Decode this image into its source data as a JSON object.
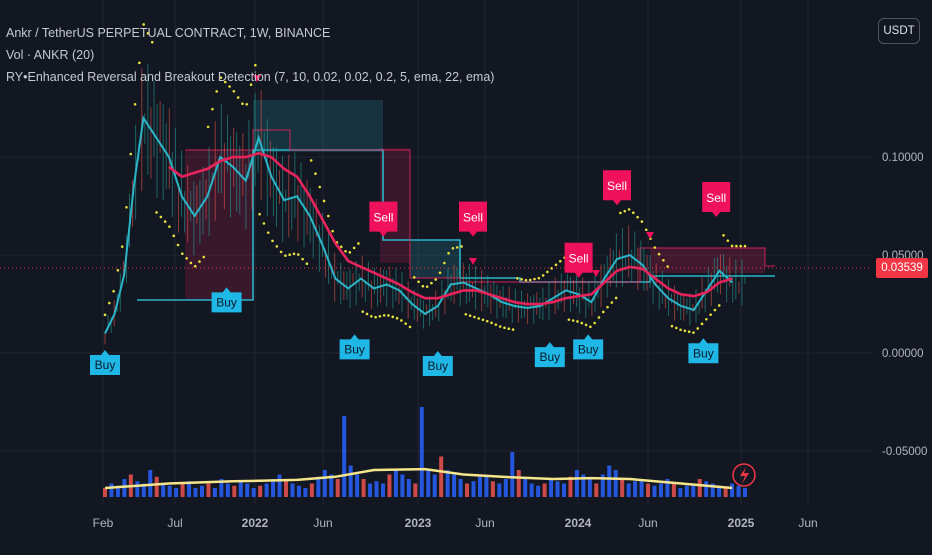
{
  "header": {
    "symbol_line": "Ankr / TetherUS PERPETUAL CONTRACT, 1W, BINANCE",
    "volume_line": "Vol · ANKR (20)",
    "indicator_line": "RY•Enhanced Reversal and Breakout Detection (7, 10, 0.02, 0.02, 0.2, 5, ema, 22, ema)"
  },
  "currency_button": "USDT",
  "last_price": "0.03539",
  "theme": {
    "background": "#131722",
    "grid": "#1f2433",
    "buy_color": "#1eb7e6",
    "sell_color": "#f0115c",
    "ema_fast_color": "#2bb5c8",
    "ema_slow_color": "#e8235c",
    "psar_color": "#e8e23a",
    "volume_ma_color": "#f5e58a",
    "volume_up_color": "#2962ff",
    "volume_down_color": "#ef5350"
  },
  "chart_data": {
    "type": "line",
    "x_ticks": [
      "Feb",
      "Jul",
      "2022",
      "Jun",
      "2023",
      "Jun",
      "2024",
      "Jun",
      "2025",
      "Jun"
    ],
    "y_ticks": [
      "0.10000",
      "0.05000",
      "0.00000",
      "-0.05000"
    ],
    "ylim": [
      -0.075,
      0.17
    ],
    "signals": [
      {
        "label": "Buy",
        "t": 0.0,
        "price": -0.001
      },
      {
        "label": "Buy",
        "t": 0.19,
        "price": 0.031
      },
      {
        "label": "Buy",
        "t": 0.39,
        "price": 0.007
      },
      {
        "label": "Buy",
        "t": 0.52,
        "price": -0.0015
      },
      {
        "label": "Sell",
        "t": 0.435,
        "price": 0.062
      },
      {
        "label": "Sell",
        "t": 0.575,
        "price": 0.062
      },
      {
        "label": "Buy",
        "t": 0.695,
        "price": 0.003
      },
      {
        "label": "Sell",
        "t": 0.74,
        "price": 0.041
      },
      {
        "label": "Buy",
        "t": 0.755,
        "price": 0.007
      },
      {
        "label": "Sell",
        "t": 0.8,
        "price": 0.078
      },
      {
        "label": "Buy",
        "t": 0.935,
        "price": 0.005
      },
      {
        "label": "Sell",
        "t": 0.955,
        "price": 0.072
      }
    ],
    "series": [
      {
        "name": "",
        "kind": "ema_fast",
        "points": [
          [
            0.0,
            0.01
          ],
          [
            0.015,
            0.02
          ],
          [
            0.03,
            0.04
          ],
          [
            0.045,
            0.085
          ],
          [
            0.06,
            0.12
          ],
          [
            0.08,
            0.11
          ],
          [
            0.1,
            0.1
          ],
          [
            0.12,
            0.08
          ],
          [
            0.14,
            0.07
          ],
          [
            0.16,
            0.08
          ],
          [
            0.18,
            0.1
          ],
          [
            0.2,
            0.095
          ],
          [
            0.22,
            0.088
          ],
          [
            0.24,
            0.11
          ],
          [
            0.26,
            0.09
          ],
          [
            0.28,
            0.078
          ],
          [
            0.3,
            0.08
          ],
          [
            0.32,
            0.07
          ],
          [
            0.34,
            0.055
          ],
          [
            0.36,
            0.038
          ],
          [
            0.38,
            0.033
          ],
          [
            0.4,
            0.038
          ],
          [
            0.42,
            0.033
          ],
          [
            0.44,
            0.035
          ],
          [
            0.46,
            0.032
          ],
          [
            0.48,
            0.025
          ],
          [
            0.5,
            0.02
          ],
          [
            0.52,
            0.024
          ],
          [
            0.54,
            0.035
          ],
          [
            0.56,
            0.036
          ],
          [
            0.58,
            0.033
          ],
          [
            0.6,
            0.03
          ],
          [
            0.62,
            0.026
          ],
          [
            0.64,
            0.024
          ],
          [
            0.66,
            0.023
          ],
          [
            0.68,
            0.024
          ],
          [
            0.7,
            0.028
          ],
          [
            0.72,
            0.032
          ],
          [
            0.74,
            0.03
          ],
          [
            0.76,
            0.026
          ],
          [
            0.78,
            0.038
          ],
          [
            0.8,
            0.048
          ],
          [
            0.82,
            0.05
          ],
          [
            0.84,
            0.045
          ],
          [
            0.86,
            0.035
          ],
          [
            0.88,
            0.028
          ],
          [
            0.9,
            0.024
          ],
          [
            0.92,
            0.022
          ],
          [
            0.94,
            0.032
          ],
          [
            0.96,
            0.042
          ],
          [
            0.98,
            0.036
          ]
        ]
      },
      {
        "name": "",
        "kind": "ema_slow",
        "points": [
          [
            0.1,
            0.095
          ],
          [
            0.12,
            0.09
          ],
          [
            0.14,
            0.092
          ],
          [
            0.16,
            0.094
          ],
          [
            0.18,
            0.098
          ],
          [
            0.2,
            0.1
          ],
          [
            0.22,
            0.1
          ],
          [
            0.24,
            0.102
          ],
          [
            0.26,
            0.1
          ],
          [
            0.28,
            0.094
          ],
          [
            0.3,
            0.09
          ],
          [
            0.32,
            0.08
          ],
          [
            0.34,
            0.068
          ],
          [
            0.36,
            0.056
          ],
          [
            0.38,
            0.047
          ],
          [
            0.4,
            0.044
          ],
          [
            0.42,
            0.041
          ],
          [
            0.44,
            0.038
          ],
          [
            0.46,
            0.035
          ],
          [
            0.48,
            0.031
          ],
          [
            0.5,
            0.028
          ],
          [
            0.52,
            0.028
          ],
          [
            0.54,
            0.03
          ],
          [
            0.56,
            0.032
          ],
          [
            0.58,
            0.032
          ],
          [
            0.6,
            0.03
          ],
          [
            0.62,
            0.028
          ],
          [
            0.64,
            0.026
          ],
          [
            0.66,
            0.025
          ],
          [
            0.68,
            0.025
          ],
          [
            0.7,
            0.026
          ],
          [
            0.72,
            0.028
          ],
          [
            0.74,
            0.029
          ],
          [
            0.76,
            0.03
          ],
          [
            0.78,
            0.036
          ],
          [
            0.8,
            0.042
          ],
          [
            0.82,
            0.044
          ],
          [
            0.84,
            0.043
          ],
          [
            0.86,
            0.038
          ],
          [
            0.88,
            0.033
          ],
          [
            0.9,
            0.03
          ],
          [
            0.92,
            0.029
          ],
          [
            0.94,
            0.031
          ],
          [
            0.96,
            0.036
          ],
          [
            0.98,
            0.038
          ]
        ]
      },
      {
        "name": "",
        "kind": "volume_ma",
        "points": [
          [
            0.0,
            0.2
          ],
          [
            0.1,
            0.3
          ],
          [
            0.2,
            0.35
          ],
          [
            0.3,
            0.38
          ],
          [
            0.36,
            0.45
          ],
          [
            0.42,
            0.6
          ],
          [
            0.5,
            0.62
          ],
          [
            0.56,
            0.5
          ],
          [
            0.62,
            0.45
          ],
          [
            0.7,
            0.4
          ],
          [
            0.76,
            0.42
          ],
          [
            0.82,
            0.4
          ],
          [
            0.9,
            0.3
          ],
          [
            0.98,
            0.2
          ]
        ]
      }
    ],
    "volume_bars": [
      0.2,
      0.3,
      0.25,
      0.4,
      0.5,
      0.35,
      0.3,
      0.6,
      0.45,
      0.3,
      0.25,
      0.2,
      0.3,
      0.35,
      0.2,
      0.25,
      0.3,
      0.2,
      0.4,
      0.3,
      0.25,
      0.35,
      0.3,
      0.2,
      0.25,
      0.3,
      0.4,
      0.5,
      0.35,
      0.3,
      0.25,
      0.2,
      0.3,
      0.45,
      0.6,
      0.5,
      0.4,
      1.8,
      0.7,
      0.5,
      0.4,
      0.3,
      0.35,
      0.3,
      0.5,
      0.6,
      0.5,
      0.4,
      0.3,
      2.0,
      0.6,
      0.5,
      0.9,
      0.6,
      0.5,
      0.4,
      0.3,
      0.35,
      0.45,
      0.5,
      0.35,
      0.3,
      0.4,
      1.0,
      0.6,
      0.4,
      0.3,
      0.25,
      0.3,
      0.4,
      0.35,
      0.3,
      0.45,
      0.6,
      0.5,
      0.4,
      0.3,
      0.5,
      0.7,
      0.6,
      0.4,
      0.3,
      0.35,
      0.4,
      0.3,
      0.25,
      0.3,
      0.4,
      0.3,
      0.2,
      0.25,
      0.3,
      0.4,
      0.35,
      0.3,
      0.25,
      0.2,
      0.3,
      0.25,
      0.2
    ]
  }
}
